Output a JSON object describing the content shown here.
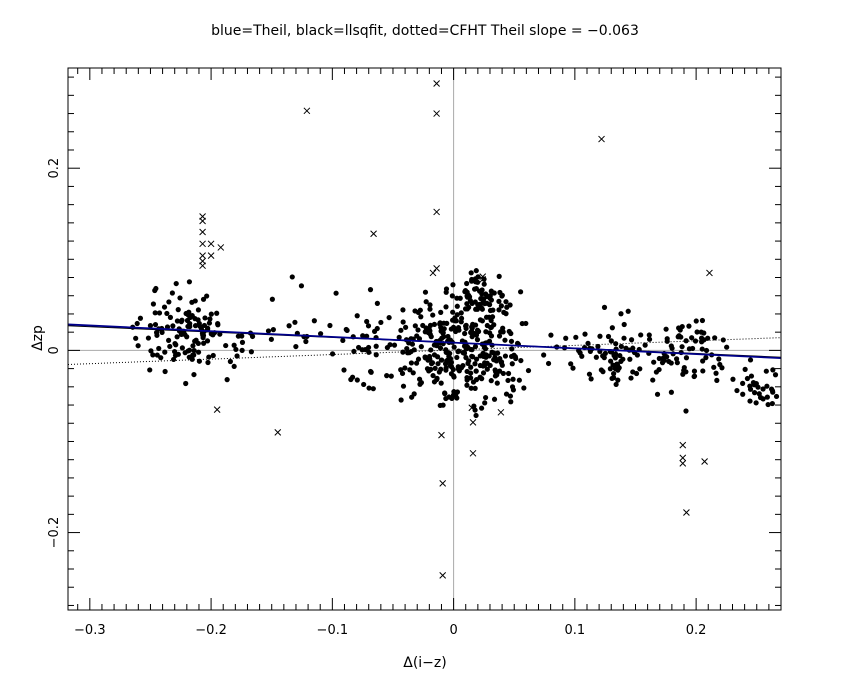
{
  "chart_data": {
    "type": "scatter",
    "title": "blue=Theil, black=llsqfit, dotted=CFHT    Theil slope = −0.063",
    "xlabel": "Δ(i−z)",
    "ylabel": "Δzp",
    "xlim": [
      -0.318,
      0.27
    ],
    "ylim": [
      -0.285,
      0.31
    ],
    "x_ticks": [
      -0.3,
      -0.2,
      -0.1,
      0,
      0.1,
      0.2
    ],
    "x_tick_labels": [
      "−0.3",
      "−0.2",
      "−0.1",
      "0",
      "0.1",
      "0.2"
    ],
    "y_ticks": [
      -0.2,
      0,
      0.2
    ],
    "y_tick_labels": [
      "−0.2",
      "0",
      "0.2"
    ],
    "grid": false,
    "zero_lines": true,
    "colors": {
      "theil": "#00008b",
      "llsqfit": "#000000",
      "cfht": "#000000",
      "zero": "#aaaaaa",
      "points": "#000000"
    },
    "lines": [
      {
        "x": [
          -0.318,
          0.27
        ],
        "y": [
          0.0285,
          -0.0085
        ]
      },
      {
        "x": [
          -0.318,
          0.27
        ],
        "y": [
          0.027,
          -0.0075
        ]
      },
      {
        "x": [
          -0.318,
          0.27
        ],
        "y": [
          -0.0155,
          0.014
        ]
      }
    ],
    "clusters": [
      {
        "cx": -0.222,
        "cy": 0.02,
        "sx": 0.02,
        "sy": 0.022,
        "n": 120
      },
      {
        "cx": -0.12,
        "cy": 0.02,
        "sx": 0.05,
        "sy": 0.022,
        "n": 45
      },
      {
        "cx": -0.06,
        "cy": -0.005,
        "sx": 0.02,
        "sy": 0.022,
        "n": 30
      },
      {
        "cx": -0.01,
        "cy": 0.0,
        "sx": 0.018,
        "sy": 0.028,
        "n": 190
      },
      {
        "cx": 0.03,
        "cy": 0.0,
        "sx": 0.018,
        "sy": 0.025,
        "n": 90
      },
      {
        "cx": 0.02,
        "cy": 0.057,
        "sx": 0.012,
        "sy": 0.013,
        "n": 70
      },
      {
        "cx": 0.055,
        "cy": 0.01,
        "sx": 0.02,
        "sy": 0.02,
        "n": 25
      },
      {
        "cx": 0.132,
        "cy": -0.01,
        "sx": 0.02,
        "sy": 0.02,
        "n": 80
      },
      {
        "cx": 0.195,
        "cy": 0.0,
        "sx": 0.015,
        "sy": 0.022,
        "n": 70
      },
      {
        "cx": 0.252,
        "cy": -0.04,
        "sx": 0.012,
        "sy": 0.014,
        "n": 32
      }
    ],
    "outliers": [
      {
        "x": -0.207,
        "y": 0.147
      },
      {
        "x": -0.207,
        "y": 0.142
      },
      {
        "x": -0.207,
        "y": 0.13
      },
      {
        "x": -0.207,
        "y": 0.117
      },
      {
        "x": -0.207,
        "y": 0.104
      },
      {
        "x": -0.207,
        "y": 0.098
      },
      {
        "x": -0.207,
        "y": 0.093
      },
      {
        "x": -0.2,
        "y": 0.117
      },
      {
        "x": -0.2,
        "y": 0.104
      },
      {
        "x": -0.192,
        "y": 0.113
      },
      {
        "x": -0.195,
        "y": -0.065
      },
      {
        "x": -0.145,
        "y": -0.09
      },
      {
        "x": -0.121,
        "y": 0.263
      },
      {
        "x": -0.066,
        "y": 0.128
      },
      {
        "x": -0.014,
        "y": 0.293
      },
      {
        "x": -0.014,
        "y": 0.26
      },
      {
        "x": -0.014,
        "y": 0.152
      },
      {
        "x": -0.014,
        "y": 0.09
      },
      {
        "x": -0.017,
        "y": 0.085
      },
      {
        "x": -0.01,
        "y": -0.093
      },
      {
        "x": -0.009,
        "y": -0.146
      },
      {
        "x": -0.009,
        "y": -0.247
      },
      {
        "x": 0.015,
        "y": -0.063
      },
      {
        "x": 0.016,
        "y": -0.079
      },
      {
        "x": 0.016,
        "y": -0.113
      },
      {
        "x": 0.024,
        "y": 0.078
      },
      {
        "x": 0.024,
        "y": 0.081
      },
      {
        "x": 0.039,
        "y": -0.068
      },
      {
        "x": 0.122,
        "y": 0.232
      },
      {
        "x": 0.189,
        "y": -0.104
      },
      {
        "x": 0.189,
        "y": -0.118
      },
      {
        "x": 0.189,
        "y": -0.124
      },
      {
        "x": 0.192,
        "y": -0.178
      },
      {
        "x": 0.207,
        "y": -0.122
      },
      {
        "x": 0.211,
        "y": 0.085
      }
    ]
  }
}
